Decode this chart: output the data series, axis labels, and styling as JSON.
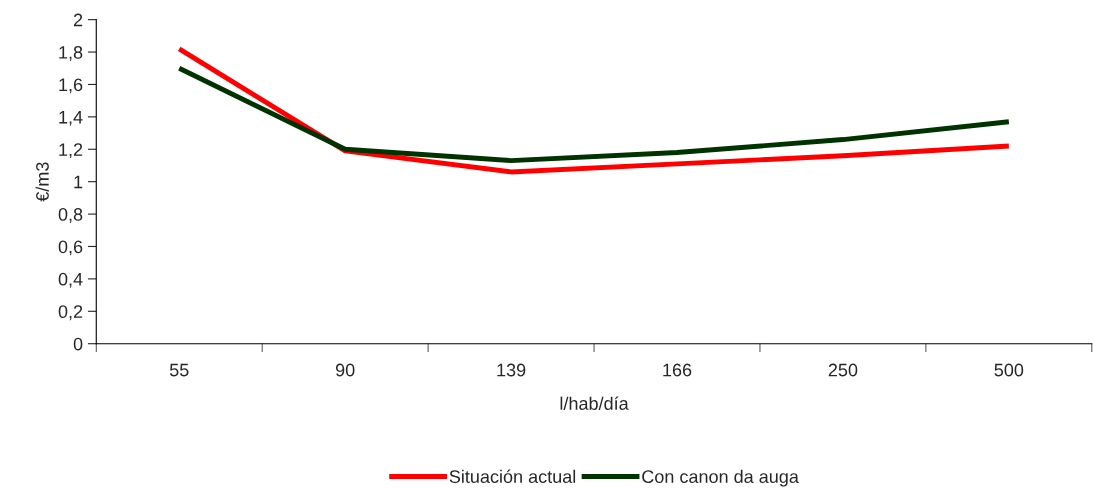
{
  "chart_data": {
    "type": "line",
    "xlabel": "l/hab/día",
    "ylabel": "€/m3",
    "categories": [
      "55",
      "90",
      "139",
      "166",
      "250",
      "500"
    ],
    "series": [
      {
        "name": "Situación actual",
        "color": "#ff0000",
        "values": [
          1.82,
          1.19,
          1.06,
          1.11,
          1.16,
          1.22
        ]
      },
      {
        "name": "Con canon da auga",
        "color": "#003300",
        "values": [
          1.7,
          1.2,
          1.13,
          1.18,
          1.26,
          1.37
        ]
      }
    ],
    "ylim": [
      0,
      2
    ],
    "yticks": [
      0,
      {
        "value": 0.2,
        "label": "0,2"
      },
      {
        "value": 0.4,
        "label": "0,4"
      },
      {
        "value": 0.6,
        "label": "0,6"
      },
      {
        "value": 0.8,
        "label": "0,8"
      },
      1,
      {
        "value": 1.2,
        "label": "1,2"
      },
      {
        "value": 1.4,
        "label": "1,4"
      },
      {
        "value": 1.6,
        "label": "1,6"
      },
      {
        "value": 1.8,
        "label": "1,8"
      },
      2
    ],
    "grid": false,
    "legend": "bottom",
    "marker": "none",
    "line_style": "solid"
  }
}
